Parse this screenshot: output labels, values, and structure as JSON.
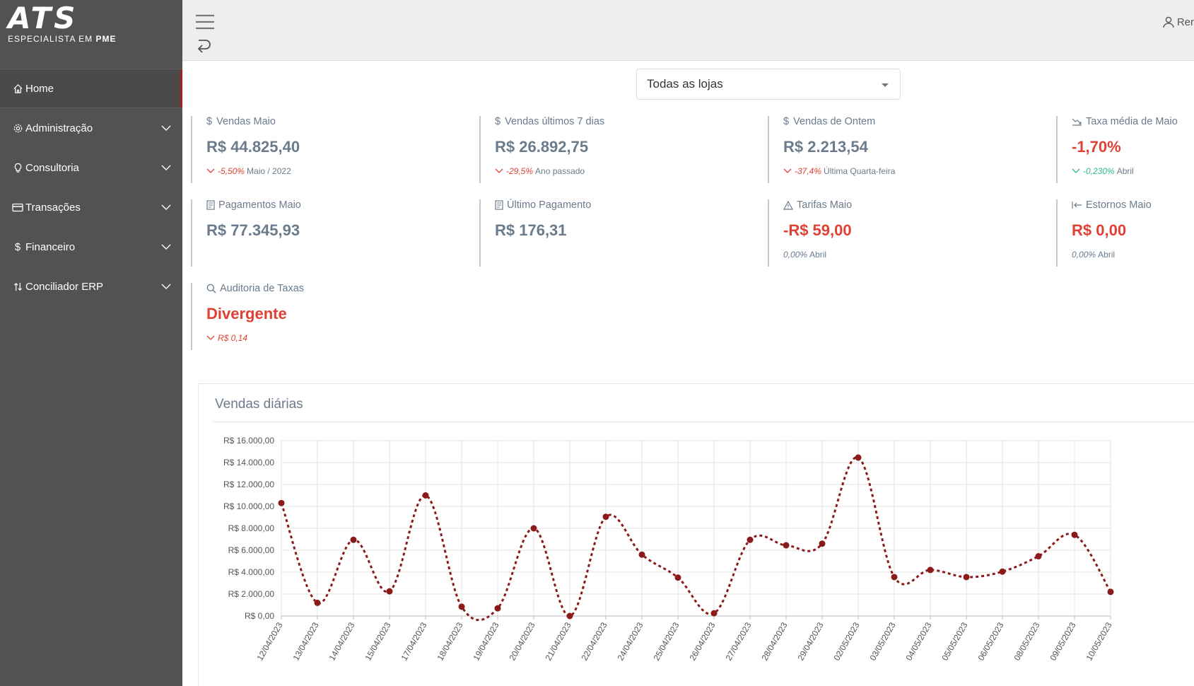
{
  "brand": {
    "mark": "ATS",
    "subtitle_prefix": "ESPECIALISTA EM ",
    "subtitle_bold": "PME"
  },
  "sidebar": {
    "items": [
      {
        "label": "Home",
        "icon": "home-icon",
        "active": true
      },
      {
        "label": "Administração",
        "icon": "gear-icon"
      },
      {
        "label": "Consultoria",
        "icon": "lightbulb-icon"
      },
      {
        "label": "Transações",
        "icon": "credit-card-icon"
      },
      {
        "label": "Financeiro",
        "icon": "dollar-icon"
      },
      {
        "label": "Conciliador ERP",
        "icon": "exchange-icon"
      }
    ]
  },
  "topbar": {
    "user_label": "Rer"
  },
  "store_select": {
    "value": "Todas as lojas"
  },
  "kpis": {
    "vendas_maio": {
      "label": "Vendas Maio",
      "value": "R$ 44.825,40",
      "delta": "-5,50%",
      "ref": "Maio / 2022"
    },
    "vendas_7dias": {
      "label": "Vendas últimos 7 dias",
      "value": "R$ 26.892,75",
      "delta": "-29,5%",
      "ref": "Ano passado"
    },
    "vendas_ontem": {
      "label": "Vendas de Ontem",
      "value": "R$ 2.213,54",
      "delta": "-37,4%",
      "ref": "Última Quarta-feira"
    },
    "taxa_media": {
      "label": "Taxa média de Maio",
      "value": "-1,70%",
      "delta": "-0,230%",
      "ref": "Abril"
    },
    "pagamentos_maio": {
      "label": "Pagamentos Maio",
      "value": "R$ 77.345,93"
    },
    "ultimo_pagamento": {
      "label": "Último Pagamento",
      "value": "R$ 176,31"
    },
    "tarifas_maio": {
      "label": "Tarifas Maio",
      "value": "-R$ 59,00",
      "delta": "0,00%",
      "ref": "Abril"
    },
    "estornos_maio": {
      "label": "Estornos Maio",
      "value": "R$ 0,00",
      "delta": "0,00%",
      "ref": "Abril"
    },
    "auditoria": {
      "label": "Auditoria de Taxas",
      "value": "Divergente",
      "delta": "R$ 0,14"
    }
  },
  "colors": {
    "accent": "#a32020",
    "negative": "#e04134",
    "positive": "#2eb88a",
    "muted": "#6b7b8c",
    "series": "#8b1a1a"
  },
  "chart_data": {
    "type": "line",
    "title": "Vendas diárias",
    "x": [
      "12/04/2023",
      "13/04/2023",
      "14/04/2023",
      "15/04/2023",
      "17/04/2023",
      "18/04/2023",
      "19/04/2023",
      "20/04/2023",
      "21/04/2023",
      "22/04/2023",
      "24/04/2023",
      "25/04/2023",
      "26/04/2023",
      "27/04/2023",
      "28/04/2023",
      "29/04/2023",
      "02/05/2023",
      "03/05/2023",
      "04/05/2023",
      "05/05/2023",
      "06/05/2023",
      "08/05/2023",
      "09/05/2023",
      "10/05/2023"
    ],
    "series": [
      {
        "values": [
          10300,
          1200,
          6950,
          2250,
          11000,
          850,
          700,
          8000,
          0,
          9050,
          5600,
          3500,
          250,
          6950,
          6450,
          6600,
          14450,
          3550,
          4200,
          3550,
          4050,
          5450,
          7400,
          2200
        ]
      }
    ],
    "ylim": [
      0,
      16000
    ],
    "yticks": [
      0,
      2000,
      4000,
      6000,
      8000,
      10000,
      12000,
      14000,
      16000
    ],
    "ytick_labels": [
      "R$ 0,00",
      "R$ 2.000,00",
      "R$ 4.000,00",
      "R$ 6.000,00",
      "R$ 8.000,00",
      "R$ 10.000,00",
      "R$ 12.000,00",
      "R$ 14.000,00",
      "R$ 16.000,00"
    ],
    "grid": true,
    "line_style": "dotted"
  }
}
